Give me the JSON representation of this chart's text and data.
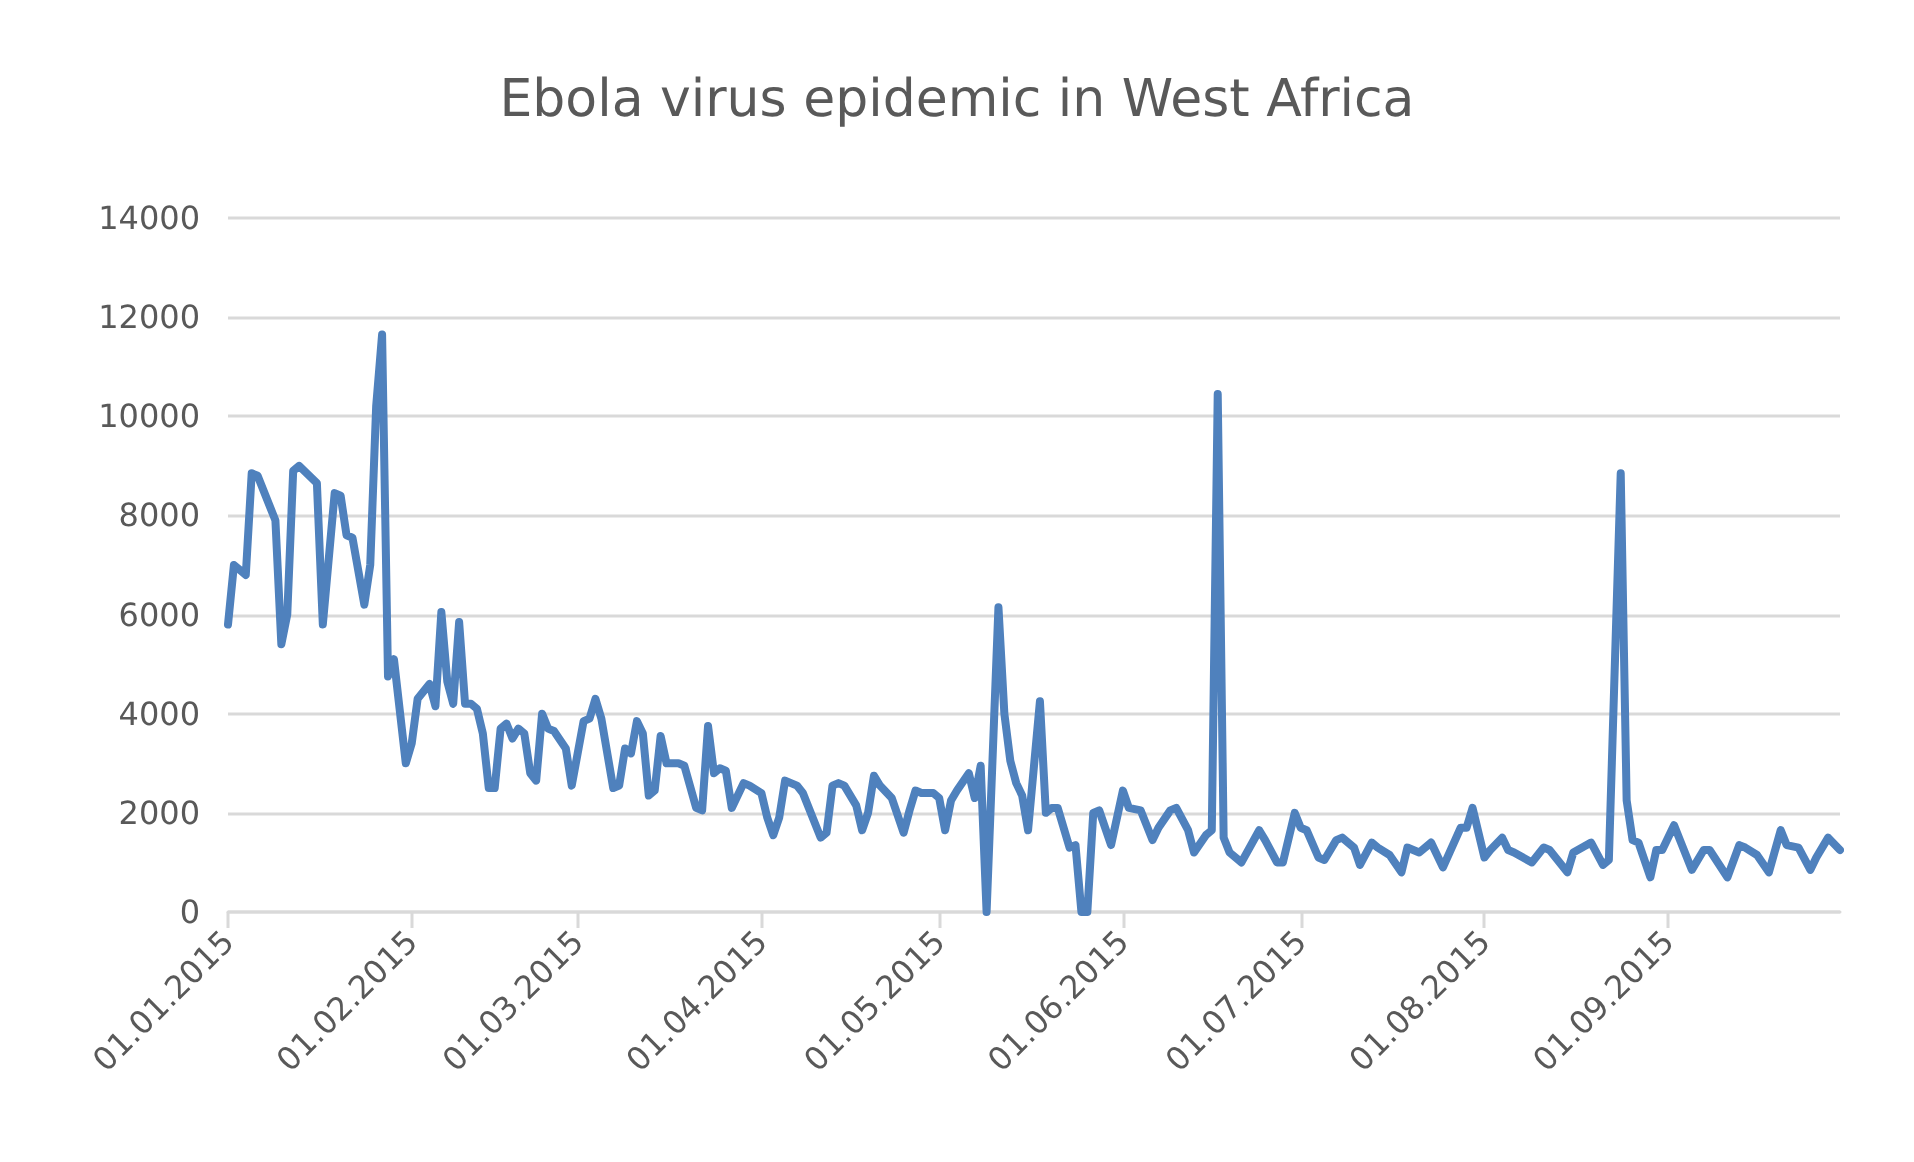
{
  "chart_data": {
    "type": "line",
    "title": "Ebola virus epidemic in West Africa",
    "x": [
      "2015-01-01",
      "2015-01-02",
      "2015-01-04",
      "2015-01-05",
      "2015-01-06",
      "2015-01-08",
      "2015-01-09",
      "2015-01-10",
      "2015-01-11",
      "2015-01-12",
      "2015-01-13",
      "2015-01-16",
      "2015-01-17",
      "2015-01-19",
      "2015-01-20",
      "2015-01-21",
      "2015-01-22",
      "2015-01-24",
      "2015-01-25",
      "2015-01-26",
      "2015-01-27",
      "2015-01-28",
      "2015-01-29",
      "2015-01-31",
      "2015-02-01",
      "2015-02-02",
      "2015-02-04",
      "2015-02-05",
      "2015-02-06",
      "2015-02-07",
      "2015-02-08",
      "2015-02-09",
      "2015-02-10",
      "2015-02-11",
      "2015-02-12",
      "2015-02-13",
      "2015-02-14",
      "2015-02-15",
      "2015-02-16",
      "2015-02-17",
      "2015-02-18",
      "2015-02-19",
      "2015-02-20",
      "2015-02-21",
      "2015-02-22",
      "2015-02-23",
      "2015-02-24",
      "2015-02-25",
      "2015-02-27",
      "2015-02-28",
      "2015-03-02",
      "2015-03-03",
      "2015-03-04",
      "2015-03-05",
      "2015-03-07",
      "2015-03-08",
      "2015-03-09",
      "2015-03-10",
      "2015-03-11",
      "2015-03-12",
      "2015-03-13",
      "2015-03-14",
      "2015-03-15",
      "2015-03-16",
      "2015-03-18",
      "2015-03-19",
      "2015-03-21",
      "2015-03-22",
      "2015-03-23",
      "2015-03-24",
      "2015-03-25",
      "2015-03-26",
      "2015-03-27",
      "2015-03-29",
      "2015-03-30",
      "2015-04-01",
      "2015-04-02",
      "2015-04-03",
      "2015-04-04",
      "2015-04-05",
      "2015-04-07",
      "2015-04-08",
      "2015-04-11",
      "2015-04-12",
      "2015-04-13",
      "2015-04-14",
      "2015-04-15",
      "2015-04-17",
      "2015-04-18",
      "2015-04-19",
      "2015-04-20",
      "2015-04-21",
      "2015-04-23",
      "2015-04-25",
      "2015-04-26",
      "2015-04-27",
      "2015-04-28",
      "2015-04-30",
      "2015-05-01",
      "2015-05-02",
      "2015-05-03",
      "2015-05-04",
      "2015-05-06",
      "2015-05-07",
      "2015-05-08",
      "2015-05-09",
      "2015-05-11",
      "2015-05-12",
      "2015-05-13",
      "2015-05-14",
      "2015-05-15",
      "2015-05-16",
      "2015-05-18",
      "2015-05-19",
      "2015-05-20",
      "2015-05-21",
      "2015-05-23",
      "2015-05-24",
      "2015-05-25",
      "2015-05-26",
      "2015-05-27",
      "2015-05-28",
      "2015-05-30",
      "2015-06-01",
      "2015-06-02",
      "2015-06-04",
      "2015-06-06",
      "2015-06-07",
      "2015-06-09",
      "2015-06-10",
      "2015-06-12",
      "2015-06-13",
      "2015-06-15",
      "2015-06-16",
      "2015-06-17",
      "2015-06-18",
      "2015-06-19",
      "2015-06-21",
      "2015-06-24",
      "2015-06-25",
      "2015-06-27",
      "2015-06-28",
      "2015-06-30",
      "2015-07-01",
      "2015-07-02",
      "2015-07-04",
      "2015-07-05",
      "2015-07-07",
      "2015-07-08",
      "2015-07-10",
      "2015-07-11",
      "2015-07-13",
      "2015-07-14",
      "2015-07-16",
      "2015-07-18",
      "2015-07-19",
      "2015-07-21",
      "2015-07-23",
      "2015-07-25",
      "2015-07-28",
      "2015-07-29",
      "2015-07-30",
      "2015-08-01",
      "2015-08-02",
      "2015-08-04",
      "2015-08-05",
      "2015-08-06",
      "2015-08-09",
      "2015-08-11",
      "2015-08-12",
      "2015-08-15",
      "2015-08-16",
      "2015-08-19",
      "2015-08-21",
      "2015-08-22",
      "2015-08-24",
      "2015-08-25",
      "2015-08-26",
      "2015-08-27",
      "2015-08-29",
      "2015-08-30",
      "2015-08-31",
      "2015-09-02",
      "2015-09-03",
      "2015-09-05",
      "2015-09-07",
      "2015-09-08",
      "2015-09-11",
      "2015-09-13",
      "2015-09-14",
      "2015-09-16",
      "2015-09-18",
      "2015-09-20",
      "2015-09-21",
      "2015-09-23",
      "2015-09-25",
      "2015-09-26",
      "2015-09-28",
      "2015-09-30"
    ],
    "series": [
      {
        "color": "#4f81bd",
        "values": [
          5800,
          7000,
          6800,
          8850,
          8800,
          8200,
          7900,
          5400,
          6000,
          8900,
          9000,
          8650,
          5800,
          8450,
          8400,
          7600,
          7550,
          6200,
          7000,
          10200,
          11650,
          4750,
          5100,
          3000,
          3400,
          4300,
          4600,
          4150,
          6050,
          4650,
          4200,
          5850,
          4200,
          4200,
          4100,
          3600,
          2500,
          2500,
          3700,
          3800,
          3500,
          3700,
          3600,
          2800,
          2650,
          4000,
          3700,
          3650,
          3300,
          2550,
          3850,
          3900,
          4300,
          3900,
          2500,
          2550,
          3300,
          3200,
          3850,
          3600,
          2350,
          2450,
          3550,
          3000,
          3000,
          2950,
          2100,
          2050,
          3750,
          2800,
          2900,
          2850,
          2100,
          2600,
          2550,
          2400,
          1900,
          1550,
          1900,
          2650,
          2550,
          2400,
          1500,
          1600,
          2550,
          2600,
          2550,
          2150,
          1650,
          2000,
          2750,
          2550,
          2300,
          1600,
          2050,
          2450,
          2400,
          2400,
          2300,
          1650,
          2250,
          2450,
          2800,
          2300,
          2950,
          0,
          6150,
          4000,
          3050,
          2600,
          2350,
          1650,
          4250,
          2000,
          2100,
          2100,
          1300,
          1350,
          0,
          0,
          2000,
          2050,
          1350,
          2450,
          2100,
          2050,
          1450,
          1700,
          2050,
          2100,
          1650,
          1200,
          1550,
          1650,
          10450,
          1500,
          1200,
          1000,
          1650,
          1450,
          1000,
          1000,
          2000,
          1700,
          1650,
          1100,
          1050,
          1450,
          1500,
          1300,
          950,
          1400,
          1300,
          1150,
          800,
          1300,
          1200,
          1400,
          900,
          1700,
          1700,
          2100,
          1100,
          1250,
          1500,
          1250,
          1200,
          1000,
          1300,
          1250,
          800,
          1200,
          1400,
          950,
          1050,
          8850,
          2250,
          1450,
          1400,
          700,
          1250,
          1250,
          1750,
          1450,
          850,
          1250,
          1250,
          700,
          1350,
          1300,
          1150,
          800,
          1650,
          1350,
          1300,
          850,
          1100,
          1500,
          1250
        ]
      }
    ],
    "xlim": [
      "2015-01-01",
      "2015-09-30"
    ],
    "xticks": [
      {
        "value": "2015-01-01",
        "label": "01.01.2015"
      },
      {
        "value": "2015-02-01",
        "label": "01.02.2015"
      },
      {
        "value": "2015-03-01",
        "label": "01.03.2015"
      },
      {
        "value": "2015-04-01",
        "label": "01.04.2015"
      },
      {
        "value": "2015-05-01",
        "label": "01.05.2015"
      },
      {
        "value": "2015-06-01",
        "label": "01.06.2015"
      },
      {
        "value": "2015-07-01",
        "label": "01.07.2015"
      },
      {
        "value": "2015-08-01",
        "label": "01.08.2015"
      },
      {
        "value": "2015-09-01",
        "label": "01.09.2015"
      }
    ],
    "ylim": [
      0,
      14000
    ],
    "yticks": [
      0,
      2000,
      4000,
      6000,
      8000,
      10000,
      12000,
      14000
    ],
    "grid": "y",
    "marker": "none",
    "line_style": "solid"
  }
}
